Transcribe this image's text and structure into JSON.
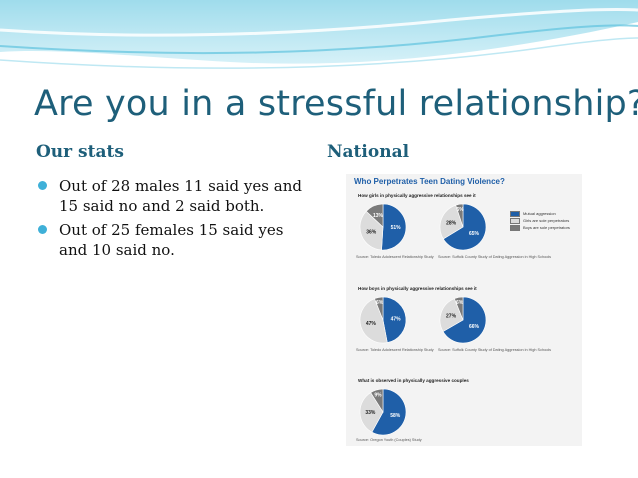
{
  "slide": {
    "title": "Are you in a stressful relationship?",
    "left_heading": "Our stats",
    "right_heading": "National",
    "bullets": [
      "Out of 28 males 11 said yes and 15 said no and 2 said both.",
      "Out of 25 females  15 said yes and  10 said no."
    ]
  },
  "colors": {
    "title": "#1e5f7a",
    "bullet_dot": "#3fb0d8",
    "mutual": "#1f5fa8",
    "girls_sole": "#dcdcdc",
    "boys_sole": "#7a7a7a"
  },
  "figure": {
    "title": "Who Perpetrates Teen Dating Violence?",
    "legend": [
      "Mutual aggression",
      "Girls are sole perpetrators",
      "Boys are sole perpetrators"
    ],
    "questions": [
      "How girls in physically aggressive relationships see it",
      "How boys in physically aggressive relationships see it",
      "What is observed in physically aggressive couples"
    ],
    "sources": {
      "toledo": "Source: Toledo Adolescent Relationship Study",
      "suffolk": "Source: Suffolk County Study of Dating Aggression in High Schools",
      "oregon": "Source: Oregon Youth (Couples) Study"
    }
  },
  "chart_data": [
    {
      "type": "pie",
      "categories": [
        "Mutual aggression",
        "Girls are sole perpetrators",
        "Boys are sole perpetrators"
      ],
      "values": [
        51,
        36,
        13
      ],
      "labels": [
        "51%",
        "36%",
        "13%"
      ]
    },
    {
      "type": "pie",
      "categories": [
        "Mutual aggression",
        "Girls are sole perpetrators",
        "Boys are sole perpetrators"
      ],
      "values": [
        65,
        28,
        5
      ],
      "labels": [
        "65%",
        "28%",
        "5%"
      ]
    },
    {
      "type": "pie",
      "categories": [
        "Mutual aggression",
        "Girls are sole perpetrators",
        "Boys are sole perpetrators"
      ],
      "values": [
        47,
        47,
        6
      ],
      "labels": [
        "47%",
        "47%",
        "6%"
      ]
    },
    {
      "type": "pie",
      "categories": [
        "Mutual aggression",
        "Girls are sole perpetrators",
        "Boys are sole perpetrators"
      ],
      "values": [
        66,
        27,
        6
      ],
      "labels": [
        "66%",
        "27%",
        "6%"
      ]
    },
    {
      "type": "pie",
      "categories": [
        "Mutual aggression",
        "Girls are sole perpetrators",
        "Boys are sole perpetrators"
      ],
      "values": [
        58,
        33,
        9
      ],
      "labels": [
        "58%",
        "33%",
        "9%"
      ]
    }
  ]
}
